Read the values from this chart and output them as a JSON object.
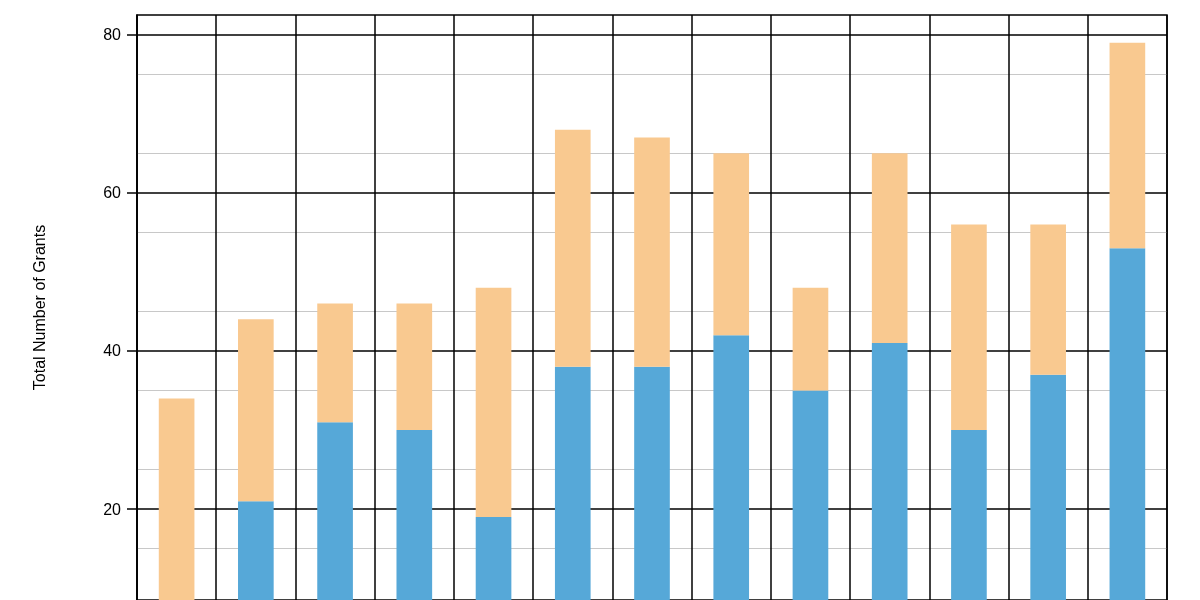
{
  "chart_data": {
    "type": "bar",
    "stacked": true,
    "ylabel": "Total Number of Grants",
    "categories": [
      null,
      null,
      null,
      null,
      null,
      null,
      null,
      null,
      null,
      null,
      null,
      null,
      null
    ],
    "series": [
      {
        "color": "#56a8d8",
        "values": [
          null,
          21,
          31,
          30,
          19,
          38,
          38,
          42,
          35,
          41,
          30,
          37,
          53
        ]
      },
      {
        "color": "#f9c990",
        "values": [
          34,
          23,
          15,
          16,
          29,
          30,
          29,
          23,
          13,
          24,
          26,
          19,
          26
        ]
      }
    ],
    "ylim": [
      8.5,
      82.5
    ],
    "yticks": [
      20,
      40,
      60,
      80
    ],
    "grid": true,
    "tick_labels": "y"
  }
}
